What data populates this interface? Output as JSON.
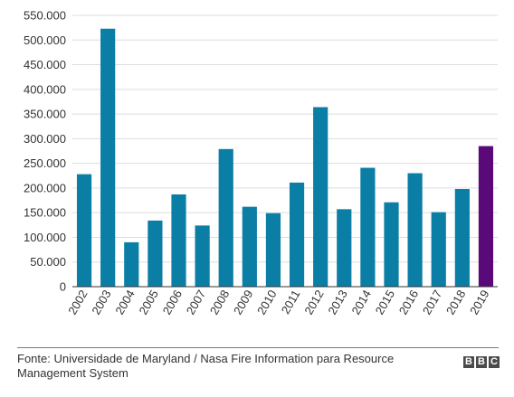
{
  "chart_data": {
    "type": "bar",
    "categories": [
      "2002",
      "2003",
      "2004",
      "2005",
      "2006",
      "2007",
      "2008",
      "2009",
      "2010",
      "2011",
      "2012",
      "2013",
      "2014",
      "2015",
      "2016",
      "2017",
      "2018",
      "2019"
    ],
    "values": [
      228000,
      523000,
      90000,
      134000,
      187000,
      124000,
      279000,
      162000,
      149000,
      211000,
      364000,
      157000,
      241000,
      171000,
      230000,
      151000,
      198000,
      285000
    ],
    "highlight_index": 17,
    "colors": {
      "bar": "#0a7ea4",
      "highlight": "#5a0a78",
      "grid": "#dddddd",
      "axis": "#333333"
    },
    "ylim": [
      0,
      550000
    ],
    "yticks": [
      0,
      50000,
      100000,
      150000,
      200000,
      250000,
      300000,
      350000,
      400000,
      450000,
      500000,
      550000
    ],
    "ytick_labels": [
      "0",
      "50.000",
      "100.000",
      "150.000",
      "200.000",
      "250.000",
      "300.000",
      "350.000",
      "400.000",
      "450.000",
      "500.000",
      "550.000"
    ],
    "grid": true,
    "legend": "none",
    "xlabel": "",
    "ylabel": "",
    "title": ""
  },
  "footer": {
    "source": "Fonte: Universidade de Maryland / Nasa Fire Information para Resource Management System",
    "logo_letters": [
      "B",
      "B",
      "C"
    ]
  }
}
